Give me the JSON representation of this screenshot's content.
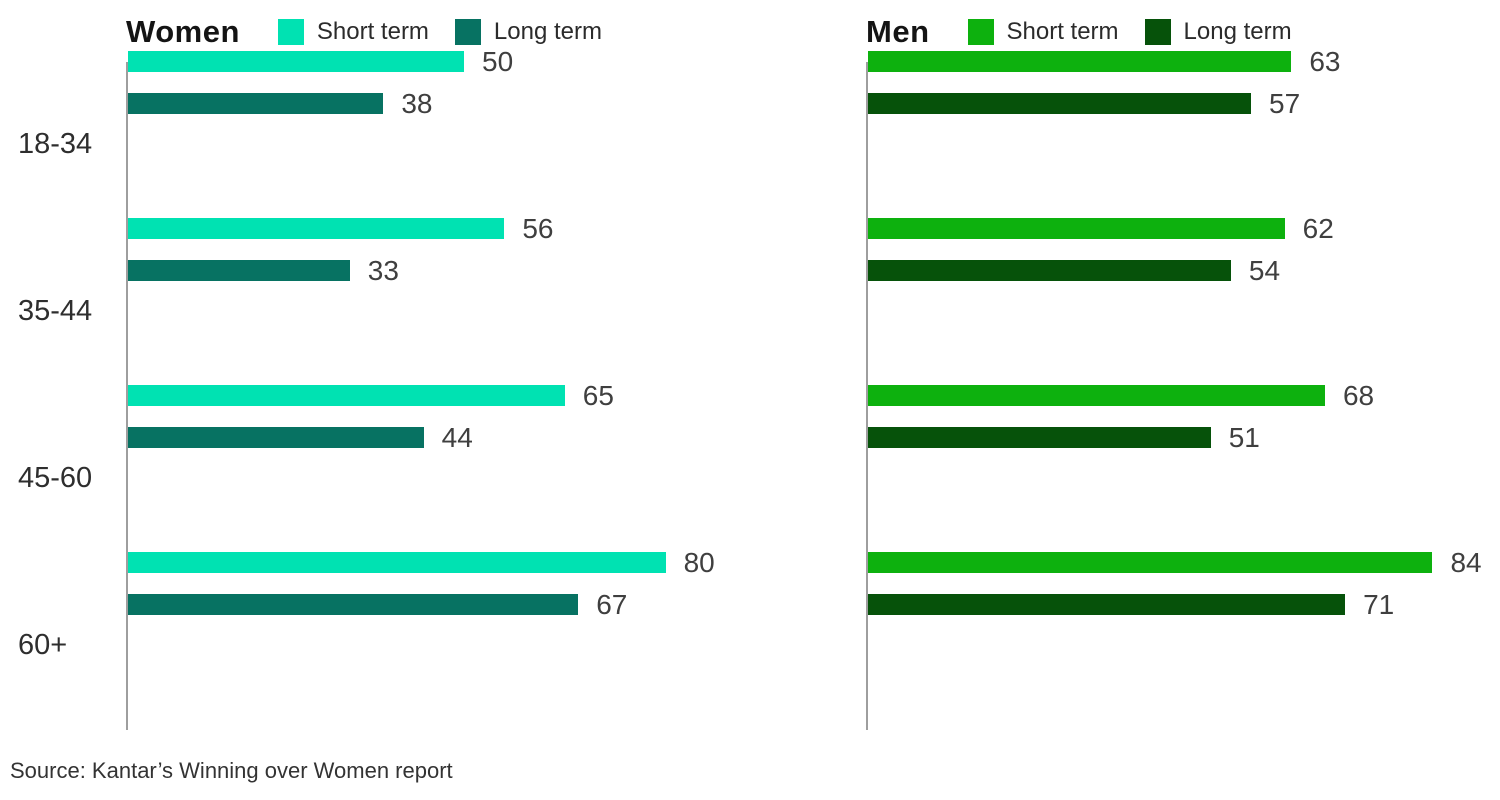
{
  "chart_data": [
    {
      "type": "bar",
      "orientation": "horizontal",
      "title": "Women",
      "categories": [
        "18-34",
        "35-44",
        "45-60",
        "60+"
      ],
      "series": [
        {
          "name": "Short term",
          "color": "#00E2B2",
          "values": [
            50,
            56,
            65,
            80
          ]
        },
        {
          "name": "Long term",
          "color": "#077262",
          "values": [
            38,
            33,
            44,
            67
          ]
        }
      ],
      "xlim": [
        0,
        100
      ],
      "grid": false,
      "legend_position": "top",
      "value_labels": true
    },
    {
      "type": "bar",
      "orientation": "horizontal",
      "title": "Men",
      "categories": [
        "18-34",
        "35-44",
        "45-60",
        "60+"
      ],
      "series": [
        {
          "name": "Short term",
          "color": "#0DB10E",
          "values": [
            63,
            62,
            68,
            84
          ]
        },
        {
          "name": "Long term",
          "color": "#06520A",
          "values": [
            57,
            54,
            51,
            71
          ]
        }
      ],
      "xlim": [
        0,
        100
      ],
      "grid": false,
      "legend_position": "top",
      "value_labels": true
    }
  ],
  "source": "Source: Kantar’s Winning over Women report",
  "colors": {
    "women_short": "#00E2B2",
    "women_long": "#077262",
    "men_short": "#0DB10E",
    "men_long": "#06520A",
    "axis_line": "#9e9e9e",
    "value_text": "#3f3f3f",
    "label_text": "#2e2e2e"
  }
}
